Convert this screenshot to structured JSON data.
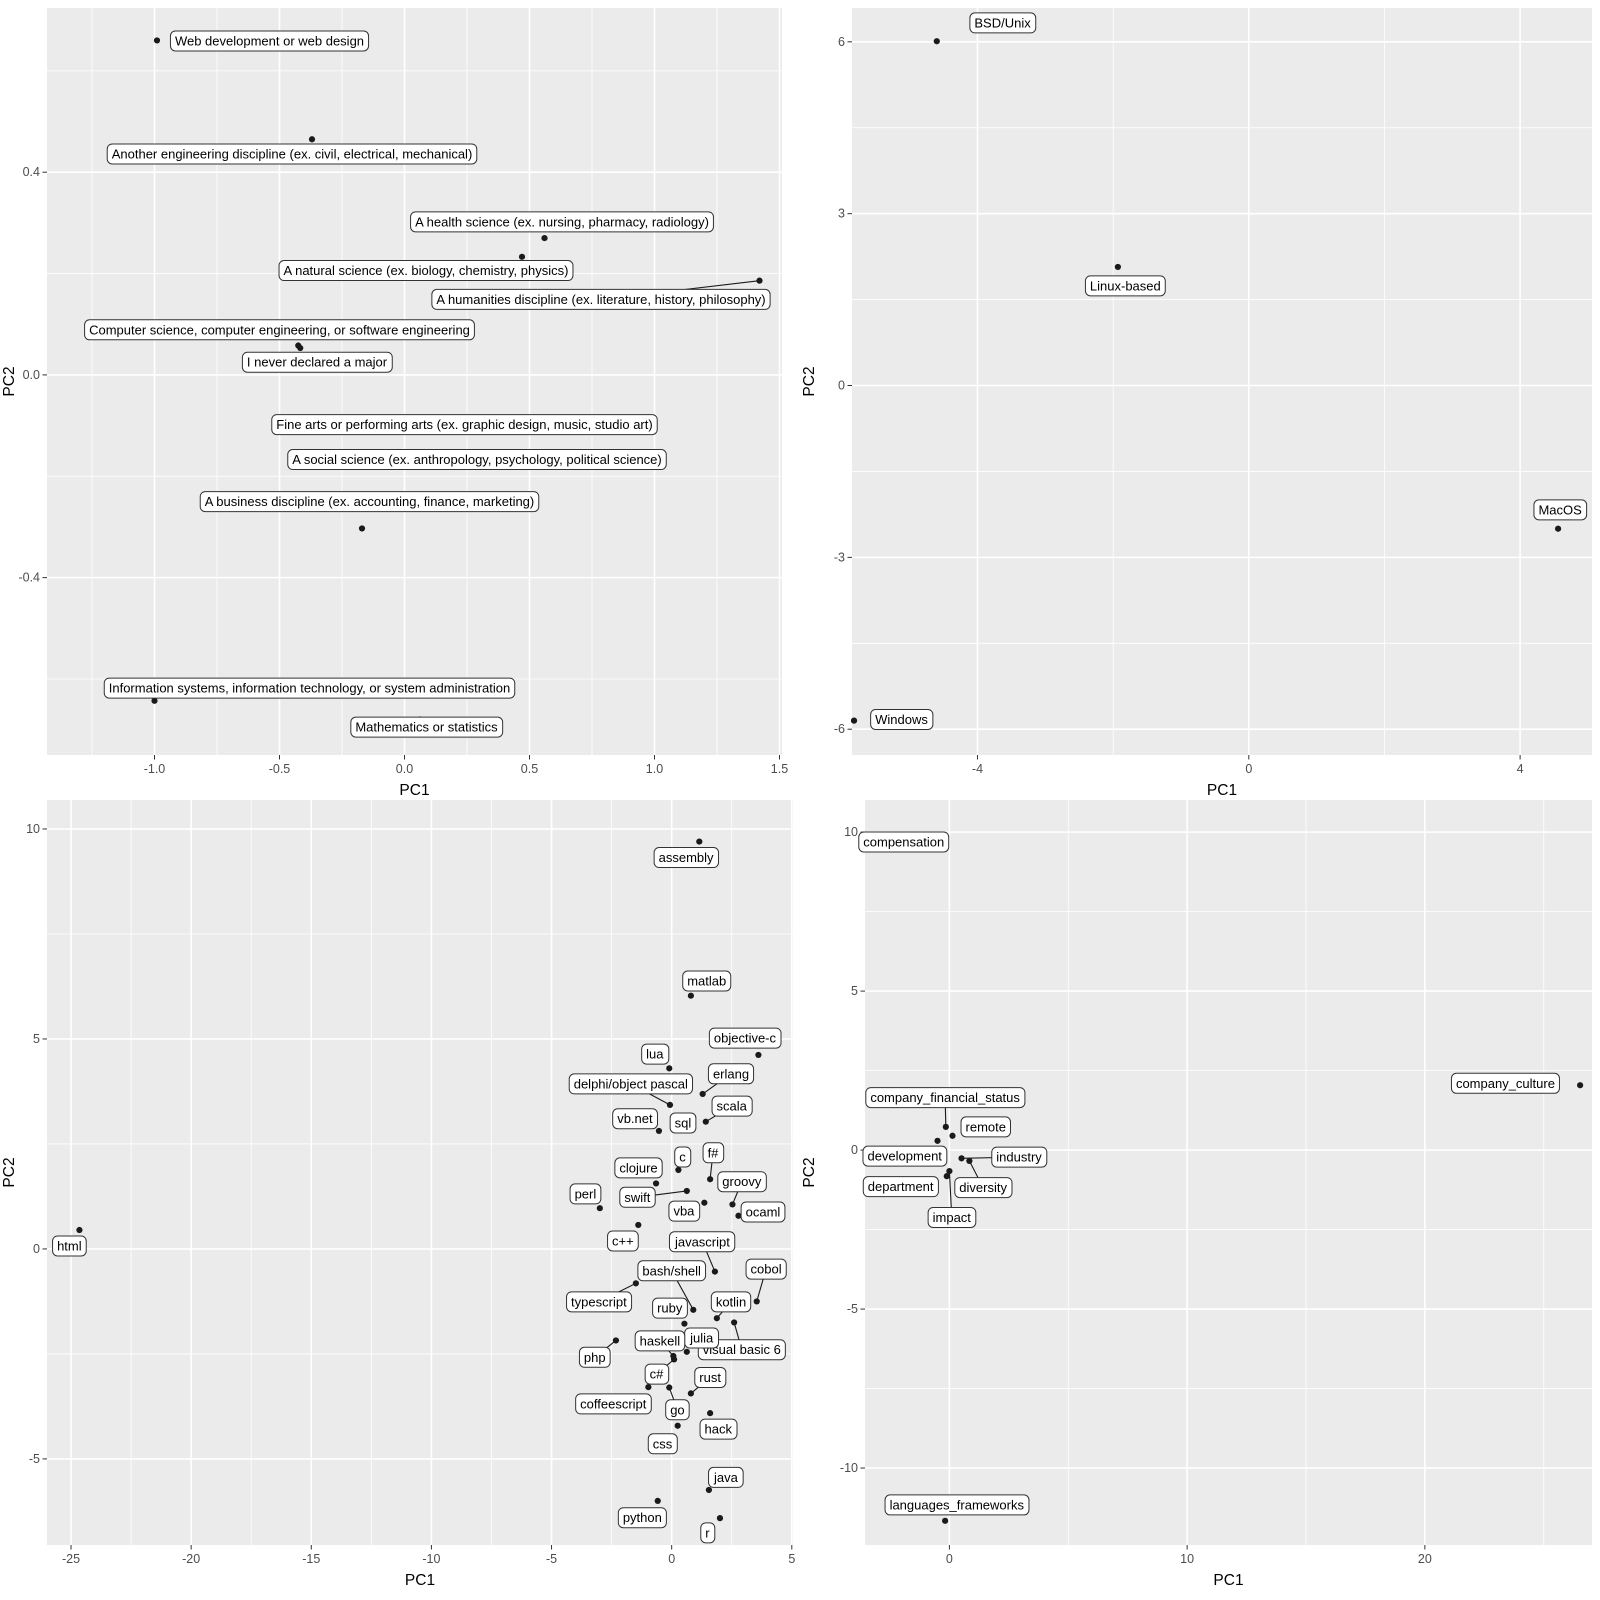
{
  "figure": {
    "description": "Four PCA biplots (PC1 vs PC2) with labeled points",
    "point_color": "#1a1a1a",
    "panel_color": "#EBEBEB",
    "label_box_color": "#ffffff",
    "label_border_color": "#333333"
  },
  "chart_data": [
    {
      "id": "majors",
      "type": "scatter",
      "title": "",
      "xlabel": "PC1",
      "ylabel": "PC2",
      "xlim": [
        -1.43,
        1.51
      ],
      "ylim": [
        -0.75,
        0.724
      ],
      "xticks": [
        -1.0,
        -0.5,
        0.0,
        0.5,
        1.0,
        1.5
      ],
      "xtick_labels": [
        "-1.0",
        "-0.5",
        "0.0",
        "0.5",
        "1.0",
        "1.5"
      ],
      "yticks": [
        -0.4,
        0.0,
        0.4
      ],
      "ytick_labels": [
        "-0.4",
        "0.0",
        "0.4"
      ],
      "grid": true,
      "legend": "none",
      "points": [
        {
          "label": "Web development or web design",
          "x": -0.99,
          "y": 0.66,
          "lx": -0.54,
          "ly": 0.659,
          "seg": false
        },
        {
          "label": "Another engineering discipline (ex. civil, electrical, mechanical)",
          "x": -0.37,
          "y": 0.465,
          "lx": -0.45,
          "ly": 0.436,
          "seg": false
        },
        {
          "label": "A health science (ex. nursing, pharmacy, radiology)",
          "x": 0.56,
          "y": 0.27,
          "lx": 0.63,
          "ly": 0.302,
          "seg": false
        },
        {
          "label": "A natural science (ex. biology, chemistry, physics)",
          "x": 0.47,
          "y": 0.233,
          "lx": 0.086,
          "ly": 0.206,
          "seg": false
        },
        {
          "label": "A humanities discipline (ex. literature, history, philosophy)",
          "x": 1.42,
          "y": 0.186,
          "lx": 0.786,
          "ly": 0.149,
          "seg": true
        },
        {
          "label": "Computer science, computer engineering, or software engineering",
          "x": -0.425,
          "y": 0.058,
          "lx": -0.5,
          "ly": 0.089,
          "seg": false
        },
        {
          "label": "I never declared a major",
          "x": -0.417,
          "y": 0.053,
          "lx": -0.35,
          "ly": 0.025,
          "seg": false
        },
        {
          "label": "Fine arts or performing arts (ex. graphic design, music, studio art)",
          "x": 0.24,
          "y": -0.098,
          "lx": 0.24,
          "ly": -0.098,
          "seg": false
        },
        {
          "label": "A social science (ex. anthropology, psychology, political science)",
          "x": 0.29,
          "y": -0.167,
          "lx": 0.29,
          "ly": -0.167,
          "seg": false
        },
        {
          "label": "A business discipline (ex. accounting, finance, marketing)",
          "x": -0.17,
          "y": -0.303,
          "lx": -0.14,
          "ly": -0.25,
          "seg": false
        },
        {
          "label": "Information systems, information technology, or system administration",
          "x": -1.0,
          "y": -0.643,
          "lx": -0.38,
          "ly": -0.618,
          "seg": false
        },
        {
          "label": "Mathematics or statistics",
          "x": 0.063,
          "y": -0.68,
          "lx": 0.088,
          "ly": -0.695,
          "seg": false
        }
      ]
    },
    {
      "id": "os",
      "type": "scatter",
      "title": "",
      "xlabel": "PC1",
      "ylabel": "PC2",
      "xlim": [
        -5.85,
        5.06
      ],
      "ylim": [
        -6.45,
        6.59
      ],
      "xticks": [
        -4,
        0,
        4
      ],
      "xtick_labels": [
        "-4",
        "0",
        "4"
      ],
      "yticks": [
        -6,
        -3,
        0,
        3,
        6
      ],
      "ytick_labels": [
        "-6",
        "-3",
        "0",
        "3",
        "6"
      ],
      "grid": true,
      "legend": "none",
      "points": [
        {
          "label": "BSD/Unix",
          "x": -4.6,
          "y": 6.01,
          "lx": -3.63,
          "ly": 6.33,
          "seg": false
        },
        {
          "label": "Linux-based",
          "x": -1.93,
          "y": 2.07,
          "lx": -1.82,
          "ly": 1.74,
          "seg": false
        },
        {
          "label": "MacOS",
          "x": 4.56,
          "y": -2.5,
          "lx": 4.59,
          "ly": -2.17,
          "seg": false
        },
        {
          "label": "Windows",
          "x": -5.82,
          "y": -5.85,
          "lx": -5.12,
          "ly": -5.83,
          "seg": false
        }
      ]
    },
    {
      "id": "languages",
      "type": "scatter",
      "title": "",
      "xlabel": "PC1",
      "ylabel": "PC2",
      "xlim": [
        -26.0,
        5.05
      ],
      "ylim": [
        -7.05,
        10.69
      ],
      "xticks": [
        -25,
        -20,
        -15,
        -10,
        -5,
        0,
        5
      ],
      "xtick_labels": [
        "-25",
        "-20",
        "-15",
        "-10",
        "-5",
        "0",
        "5"
      ],
      "yticks": [
        -5,
        0,
        5,
        10
      ],
      "ytick_labels": [
        "-5",
        "0",
        "5",
        "10"
      ],
      "grid": true,
      "legend": "none",
      "points": [
        {
          "label": "assembly",
          "x": 1.15,
          "y": 9.7,
          "lx": 0.6,
          "ly": 9.32,
          "seg": false
        },
        {
          "label": "matlab",
          "x": 0.8,
          "y": 6.03,
          "lx": 1.46,
          "ly": 6.38,
          "seg": false
        },
        {
          "label": "objective-c",
          "x": 3.61,
          "y": 4.62,
          "lx": 3.05,
          "ly": 5.02,
          "seg": false
        },
        {
          "label": "lua",
          "x": -0.1,
          "y": 4.3,
          "lx": -0.7,
          "ly": 4.64,
          "seg": false
        },
        {
          "label": "erlang",
          "x": 1.29,
          "y": 3.69,
          "lx": 2.47,
          "ly": 4.17,
          "seg": true
        },
        {
          "label": "delphi/object pascal",
          "x": -0.07,
          "y": 3.43,
          "lx": -1.7,
          "ly": 3.93,
          "seg": true
        },
        {
          "label": "scala",
          "x": 1.42,
          "y": 3.03,
          "lx": 2.5,
          "ly": 3.4,
          "seg": true
        },
        {
          "label": "sql",
          "x": 0.7,
          "y": 2.92,
          "lx": 0.47,
          "ly": 3.0,
          "seg": false
        },
        {
          "label": "vb.net",
          "x": -0.53,
          "y": 2.81,
          "lx": -1.53,
          "ly": 3.1,
          "seg": false
        },
        {
          "label": "c",
          "x": 0.28,
          "y": 1.88,
          "lx": 0.45,
          "ly": 2.19,
          "seg": false
        },
        {
          "label": "f#",
          "x": 1.6,
          "y": 1.66,
          "lx": 1.72,
          "ly": 2.29,
          "seg": true
        },
        {
          "label": "clojure",
          "x": -0.65,
          "y": 1.56,
          "lx": -1.38,
          "ly": 1.93,
          "seg": false
        },
        {
          "label": "swift",
          "x": 0.63,
          "y": 1.38,
          "lx": -1.43,
          "ly": 1.23,
          "seg": true
        },
        {
          "label": "groovy",
          "x": 2.53,
          "y": 1.06,
          "lx": 2.92,
          "ly": 1.6,
          "seg": true
        },
        {
          "label": "vba",
          "x": 1.36,
          "y": 1.1,
          "lx": 0.51,
          "ly": 0.9,
          "seg": false
        },
        {
          "label": "ocaml",
          "x": 2.78,
          "y": 0.79,
          "lx": 3.8,
          "ly": 0.88,
          "seg": false
        },
        {
          "label": "perl",
          "x": -2.99,
          "y": 0.97,
          "lx": -3.59,
          "ly": 1.31,
          "seg": false
        },
        {
          "label": "c++",
          "x": -1.39,
          "y": 0.57,
          "lx": -2.03,
          "ly": 0.19,
          "seg": false
        },
        {
          "label": "html",
          "x": -24.65,
          "y": 0.45,
          "lx": -25.07,
          "ly": 0.07,
          "seg": false
        },
        {
          "label": "javascript",
          "x": 1.8,
          "y": -0.54,
          "lx": 1.28,
          "ly": 0.17,
          "seg": true
        },
        {
          "label": "bash/shell",
          "x": 0.9,
          "y": -1.45,
          "lx": 0.0,
          "ly": -0.52,
          "seg": true
        },
        {
          "label": "cobol",
          "x": 3.54,
          "y": -1.25,
          "lx": 3.93,
          "ly": -0.48,
          "seg": true
        },
        {
          "label": "typescript",
          "x": -1.49,
          "y": -0.82,
          "lx": -3.03,
          "ly": -1.26,
          "seg": true
        },
        {
          "label": "ruby",
          "x": 0.53,
          "y": -1.78,
          "lx": -0.08,
          "ly": -1.41,
          "seg": false
        },
        {
          "label": "kotlin",
          "x": 1.88,
          "y": -1.65,
          "lx": 2.47,
          "ly": -1.26,
          "seg": true
        },
        {
          "label": "visual basic 6",
          "x": 2.6,
          "y": -1.75,
          "lx": 2.92,
          "ly": -2.4,
          "seg": true
        },
        {
          "label": "julia",
          "x": 0.63,
          "y": -2.45,
          "lx": 1.25,
          "ly": -2.12,
          "seg": false
        },
        {
          "label": "haskell",
          "x": 0.07,
          "y": -2.55,
          "lx": -0.49,
          "ly": -2.19,
          "seg": true
        },
        {
          "label": "php",
          "x": -2.32,
          "y": -2.18,
          "lx": -3.2,
          "ly": -2.58,
          "seg": true
        },
        {
          "label": "c#",
          "x": 0.1,
          "y": -2.63,
          "lx": -0.63,
          "ly": -2.98,
          "seg": true
        },
        {
          "label": "rust",
          "x": 0.8,
          "y": -3.44,
          "lx": 1.6,
          "ly": -3.06,
          "seg": true
        },
        {
          "label": "coffeescript",
          "x": -0.97,
          "y": -3.29,
          "lx": -2.43,
          "ly": -3.69,
          "seg": false
        },
        {
          "label": "go",
          "x": -0.1,
          "y": -3.3,
          "lx": 0.24,
          "ly": -3.83,
          "seg": true
        },
        {
          "label": "hack",
          "x": 1.6,
          "y": -3.91,
          "lx": 1.94,
          "ly": -4.29,
          "seg": false
        },
        {
          "label": "css",
          "x": 0.25,
          "y": -4.21,
          "lx": -0.38,
          "ly": -4.64,
          "seg": false
        },
        {
          "label": "java",
          "x": 1.55,
          "y": -5.74,
          "lx": 2.26,
          "ly": -5.44,
          "seg": false
        },
        {
          "label": "python",
          "x": -0.58,
          "y": -6.0,
          "lx": -1.22,
          "ly": -6.4,
          "seg": false
        },
        {
          "label": "r",
          "x": 2.01,
          "y": -6.41,
          "lx": 1.49,
          "ly": -6.76,
          "seg": false
        }
      ]
    },
    {
      "id": "factors",
      "type": "scatter",
      "title": "",
      "xlabel": "PC1",
      "ylabel": "PC2",
      "xlim": [
        -3.55,
        27.03
      ],
      "ylim": [
        -12.42,
        11.01
      ],
      "xticks": [
        0,
        10,
        20
      ],
      "xtick_labels": [
        "0",
        "10",
        "20"
      ],
      "yticks": [
        -10,
        -5,
        0,
        5,
        10
      ],
      "ytick_labels": [
        "-10",
        "-5",
        "0",
        "5",
        "10"
      ],
      "grid": true,
      "legend": "none",
      "points": [
        {
          "label": "compensation",
          "x": -3.42,
          "y": 9.72,
          "lx": -1.92,
          "ly": 9.69,
          "seg": false
        },
        {
          "label": "company_culture",
          "x": 26.53,
          "y": 2.04,
          "lx": 23.39,
          "ly": 2.1,
          "seg": false
        },
        {
          "label": "company_financial_status",
          "x": -0.15,
          "y": 0.73,
          "lx": -0.18,
          "ly": 1.65,
          "seg": true
        },
        {
          "label": "remote",
          "x": 0.13,
          "y": 0.45,
          "lx": 1.53,
          "ly": 0.73,
          "seg": false
        },
        {
          "label": "development",
          "x": -0.5,
          "y": 0.29,
          "lx": -1.88,
          "ly": -0.19,
          "seg": false
        },
        {
          "label": "industry",
          "x": 0.51,
          "y": -0.26,
          "lx": 2.93,
          "ly": -0.22,
          "seg": true
        },
        {
          "label": "diversity",
          "x": 0.84,
          "y": -0.34,
          "lx": 1.42,
          "ly": -1.18,
          "seg": true
        },
        {
          "label": "department",
          "x": -0.11,
          "y": -0.82,
          "lx": -2.05,
          "ly": -1.15,
          "seg": false
        },
        {
          "label": "impact",
          "x": 0.0,
          "y": -0.66,
          "lx": 0.1,
          "ly": -2.12,
          "seg": true
        },
        {
          "label": "languages_frameworks",
          "x": -0.18,
          "y": -11.66,
          "lx": 0.31,
          "ly": -11.16,
          "seg": false
        }
      ]
    }
  ]
}
